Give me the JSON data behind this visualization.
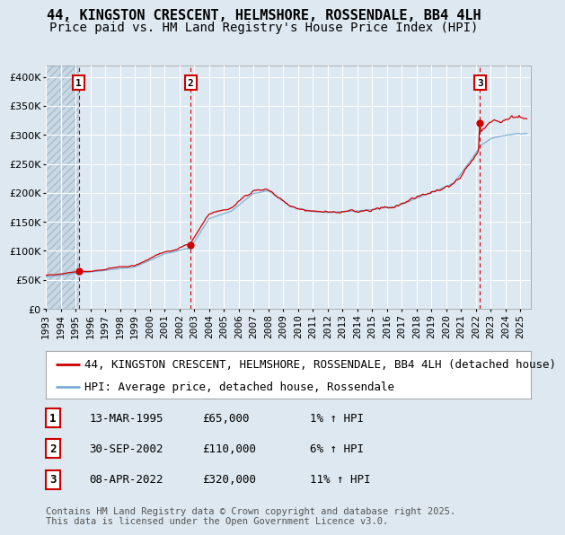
{
  "title_line1": "44, KINGSTON CRESCENT, HELMSHORE, ROSSENDALE, BB4 4LH",
  "title_line2": "Price paid vs. HM Land Registry's House Price Index (HPI)",
  "legend_line1": "44, KINGSTON CRESCENT, HELMSHORE, ROSSENDALE, BB4 4LH (detached house)",
  "legend_line2": "HPI: Average price, detached house, Rossendale",
  "sale_prices": [
    65000,
    110000,
    320000
  ],
  "sale_labels": [
    "1",
    "2",
    "3"
  ],
  "table_rows": [
    [
      "1",
      "13-MAR-1995",
      "£65,000",
      "1% ↑ HPI"
    ],
    [
      "2",
      "30-SEP-2002",
      "£110,000",
      "6% ↑ HPI"
    ],
    [
      "3",
      "08-APR-2022",
      "£320,000",
      "11% ↑ HPI"
    ]
  ],
  "footnote": "Contains HM Land Registry data © Crown copyright and database right 2025.\nThis data is licensed under the Open Government Licence v3.0.",
  "ylim": [
    0,
    420000
  ],
  "sale1_year": 1995.208,
  "sale2_year": 2002.75,
  "sale3_year": 2022.27,
  "red_line_color": "#cc0000",
  "blue_line_color": "#7badd4",
  "background_color": "#dde8f0",
  "plot_bg_color": "#dce8f2",
  "hatch_facecolor": "#c8d8e4",
  "vline_color": "#cc0000",
  "dot_color": "#cc0000",
  "grid_color": "#ffffff",
  "title_fontsize": 11,
  "subtitle_fontsize": 10,
  "tick_fontsize": 8,
  "legend_fontsize": 9,
  "table_fontsize": 9,
  "footnote_fontsize": 7.5
}
